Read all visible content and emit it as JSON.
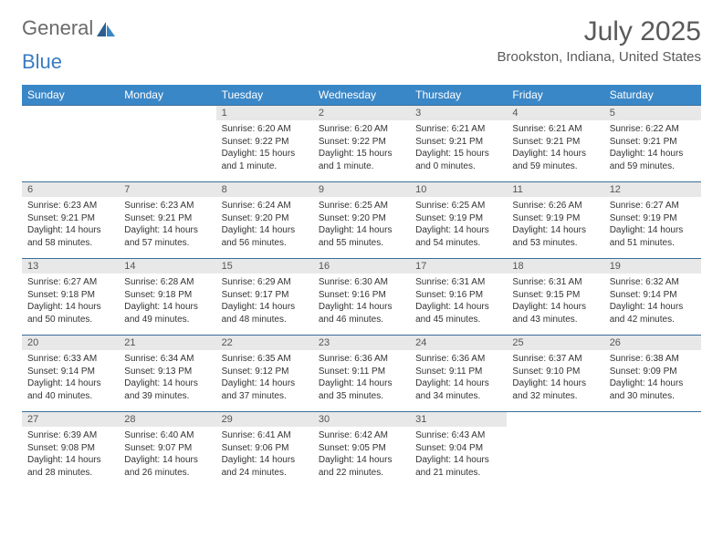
{
  "logo": {
    "text1": "General",
    "text2": "Blue"
  },
  "title": "July 2025",
  "location": "Brookston, Indiana, United States",
  "colors": {
    "header_bg": "#3a87c7",
    "header_text": "#ffffff",
    "daynum_bg": "#e8e8e8",
    "border": "#3a6d9a",
    "title_color": "#5a5a5a",
    "logo_gray": "#6a6a6a",
    "logo_blue": "#3a7cc2"
  },
  "weekdays": [
    "Sunday",
    "Monday",
    "Tuesday",
    "Wednesday",
    "Thursday",
    "Friday",
    "Saturday"
  ],
  "weeks": [
    [
      {
        "empty": true
      },
      {
        "empty": true
      },
      {
        "day": "1",
        "sunrise": "Sunrise: 6:20 AM",
        "sunset": "Sunset: 9:22 PM",
        "daylight": "Daylight: 15 hours and 1 minute."
      },
      {
        "day": "2",
        "sunrise": "Sunrise: 6:20 AM",
        "sunset": "Sunset: 9:22 PM",
        "daylight": "Daylight: 15 hours and 1 minute."
      },
      {
        "day": "3",
        "sunrise": "Sunrise: 6:21 AM",
        "sunset": "Sunset: 9:21 PM",
        "daylight": "Daylight: 15 hours and 0 minutes."
      },
      {
        "day": "4",
        "sunrise": "Sunrise: 6:21 AM",
        "sunset": "Sunset: 9:21 PM",
        "daylight": "Daylight: 14 hours and 59 minutes."
      },
      {
        "day": "5",
        "sunrise": "Sunrise: 6:22 AM",
        "sunset": "Sunset: 9:21 PM",
        "daylight": "Daylight: 14 hours and 59 minutes."
      }
    ],
    [
      {
        "day": "6",
        "sunrise": "Sunrise: 6:23 AM",
        "sunset": "Sunset: 9:21 PM",
        "daylight": "Daylight: 14 hours and 58 minutes."
      },
      {
        "day": "7",
        "sunrise": "Sunrise: 6:23 AM",
        "sunset": "Sunset: 9:21 PM",
        "daylight": "Daylight: 14 hours and 57 minutes."
      },
      {
        "day": "8",
        "sunrise": "Sunrise: 6:24 AM",
        "sunset": "Sunset: 9:20 PM",
        "daylight": "Daylight: 14 hours and 56 minutes."
      },
      {
        "day": "9",
        "sunrise": "Sunrise: 6:25 AM",
        "sunset": "Sunset: 9:20 PM",
        "daylight": "Daylight: 14 hours and 55 minutes."
      },
      {
        "day": "10",
        "sunrise": "Sunrise: 6:25 AM",
        "sunset": "Sunset: 9:19 PM",
        "daylight": "Daylight: 14 hours and 54 minutes."
      },
      {
        "day": "11",
        "sunrise": "Sunrise: 6:26 AM",
        "sunset": "Sunset: 9:19 PM",
        "daylight": "Daylight: 14 hours and 53 minutes."
      },
      {
        "day": "12",
        "sunrise": "Sunrise: 6:27 AM",
        "sunset": "Sunset: 9:19 PM",
        "daylight": "Daylight: 14 hours and 51 minutes."
      }
    ],
    [
      {
        "day": "13",
        "sunrise": "Sunrise: 6:27 AM",
        "sunset": "Sunset: 9:18 PM",
        "daylight": "Daylight: 14 hours and 50 minutes."
      },
      {
        "day": "14",
        "sunrise": "Sunrise: 6:28 AM",
        "sunset": "Sunset: 9:18 PM",
        "daylight": "Daylight: 14 hours and 49 minutes."
      },
      {
        "day": "15",
        "sunrise": "Sunrise: 6:29 AM",
        "sunset": "Sunset: 9:17 PM",
        "daylight": "Daylight: 14 hours and 48 minutes."
      },
      {
        "day": "16",
        "sunrise": "Sunrise: 6:30 AM",
        "sunset": "Sunset: 9:16 PM",
        "daylight": "Daylight: 14 hours and 46 minutes."
      },
      {
        "day": "17",
        "sunrise": "Sunrise: 6:31 AM",
        "sunset": "Sunset: 9:16 PM",
        "daylight": "Daylight: 14 hours and 45 minutes."
      },
      {
        "day": "18",
        "sunrise": "Sunrise: 6:31 AM",
        "sunset": "Sunset: 9:15 PM",
        "daylight": "Daylight: 14 hours and 43 minutes."
      },
      {
        "day": "19",
        "sunrise": "Sunrise: 6:32 AM",
        "sunset": "Sunset: 9:14 PM",
        "daylight": "Daylight: 14 hours and 42 minutes."
      }
    ],
    [
      {
        "day": "20",
        "sunrise": "Sunrise: 6:33 AM",
        "sunset": "Sunset: 9:14 PM",
        "daylight": "Daylight: 14 hours and 40 minutes."
      },
      {
        "day": "21",
        "sunrise": "Sunrise: 6:34 AM",
        "sunset": "Sunset: 9:13 PM",
        "daylight": "Daylight: 14 hours and 39 minutes."
      },
      {
        "day": "22",
        "sunrise": "Sunrise: 6:35 AM",
        "sunset": "Sunset: 9:12 PM",
        "daylight": "Daylight: 14 hours and 37 minutes."
      },
      {
        "day": "23",
        "sunrise": "Sunrise: 6:36 AM",
        "sunset": "Sunset: 9:11 PM",
        "daylight": "Daylight: 14 hours and 35 minutes."
      },
      {
        "day": "24",
        "sunrise": "Sunrise: 6:36 AM",
        "sunset": "Sunset: 9:11 PM",
        "daylight": "Daylight: 14 hours and 34 minutes."
      },
      {
        "day": "25",
        "sunrise": "Sunrise: 6:37 AM",
        "sunset": "Sunset: 9:10 PM",
        "daylight": "Daylight: 14 hours and 32 minutes."
      },
      {
        "day": "26",
        "sunrise": "Sunrise: 6:38 AM",
        "sunset": "Sunset: 9:09 PM",
        "daylight": "Daylight: 14 hours and 30 minutes."
      }
    ],
    [
      {
        "day": "27",
        "sunrise": "Sunrise: 6:39 AM",
        "sunset": "Sunset: 9:08 PM",
        "daylight": "Daylight: 14 hours and 28 minutes."
      },
      {
        "day": "28",
        "sunrise": "Sunrise: 6:40 AM",
        "sunset": "Sunset: 9:07 PM",
        "daylight": "Daylight: 14 hours and 26 minutes."
      },
      {
        "day": "29",
        "sunrise": "Sunrise: 6:41 AM",
        "sunset": "Sunset: 9:06 PM",
        "daylight": "Daylight: 14 hours and 24 minutes."
      },
      {
        "day": "30",
        "sunrise": "Sunrise: 6:42 AM",
        "sunset": "Sunset: 9:05 PM",
        "daylight": "Daylight: 14 hours and 22 minutes."
      },
      {
        "day": "31",
        "sunrise": "Sunrise: 6:43 AM",
        "sunset": "Sunset: 9:04 PM",
        "daylight": "Daylight: 14 hours and 21 minutes."
      },
      {
        "empty": true
      },
      {
        "empty": true
      }
    ]
  ]
}
